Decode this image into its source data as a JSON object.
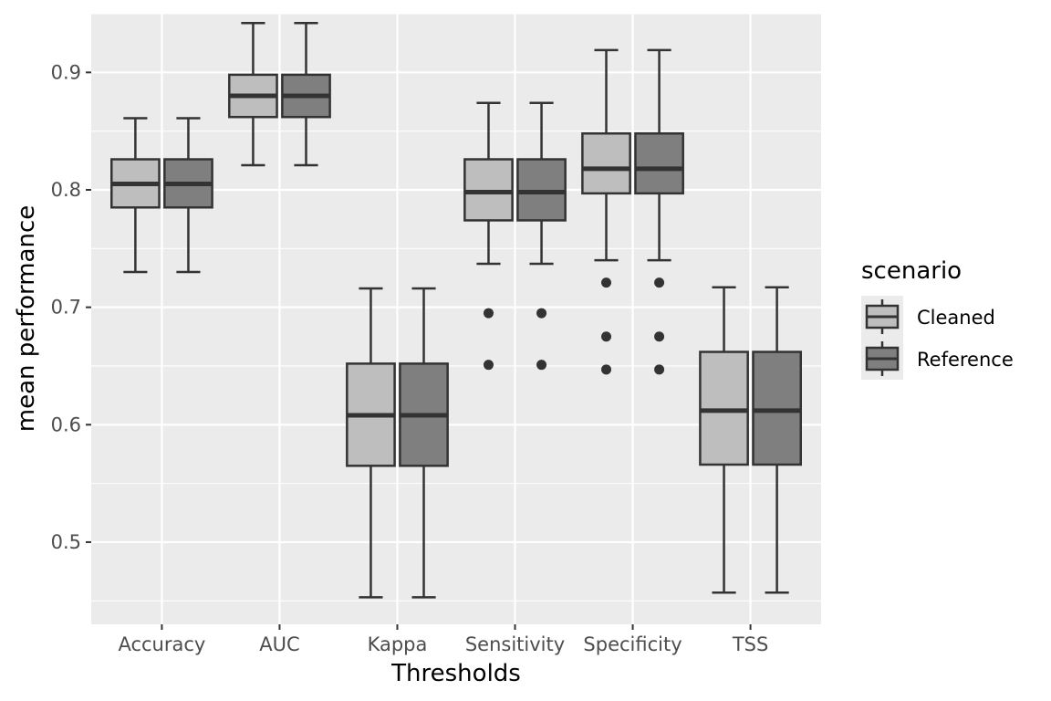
{
  "chart_data": {
    "type": "boxplot",
    "title": "",
    "xlabel": "Thresholds",
    "ylabel": "mean performance",
    "ylim": [
      0.43,
      0.95
    ],
    "yticks": [
      0.5,
      0.6,
      0.7,
      0.8,
      0.9
    ],
    "ytick_labels": [
      "0.5",
      "0.6",
      "0.7",
      "0.8",
      "0.9"
    ],
    "grid": true,
    "legend_position": "right",
    "legend_title": "scenario",
    "categories": [
      "Accuracy",
      "AUC",
      "Kappa",
      "Sensitivity",
      "Specificity",
      "TSS"
    ],
    "series": [
      {
        "name": "Cleaned",
        "color": "#bebebe",
        "boxes": [
          {
            "min": 0.73,
            "q1": 0.785,
            "median": 0.805,
            "q3": 0.826,
            "max": 0.861,
            "outliers": []
          },
          {
            "min": 0.821,
            "q1": 0.862,
            "median": 0.88,
            "q3": 0.898,
            "max": 0.942,
            "outliers": []
          },
          {
            "min": 0.453,
            "q1": 0.565,
            "median": 0.608,
            "q3": 0.652,
            "max": 0.716,
            "outliers": []
          },
          {
            "min": 0.737,
            "q1": 0.774,
            "median": 0.798,
            "q3": 0.826,
            "max": 0.874,
            "outliers": [
              0.695,
              0.651
            ]
          },
          {
            "min": 0.74,
            "q1": 0.797,
            "median": 0.818,
            "q3": 0.848,
            "max": 0.919,
            "outliers": [
              0.721,
              0.675,
              0.647
            ]
          },
          {
            "min": 0.457,
            "q1": 0.566,
            "median": 0.612,
            "q3": 0.662,
            "max": 0.717,
            "outliers": []
          }
        ]
      },
      {
        "name": "Reference",
        "color": "#7f7f7f",
        "boxes": [
          {
            "min": 0.73,
            "q1": 0.785,
            "median": 0.805,
            "q3": 0.826,
            "max": 0.861,
            "outliers": []
          },
          {
            "min": 0.821,
            "q1": 0.862,
            "median": 0.88,
            "q3": 0.898,
            "max": 0.942,
            "outliers": []
          },
          {
            "min": 0.453,
            "q1": 0.565,
            "median": 0.608,
            "q3": 0.652,
            "max": 0.716,
            "outliers": []
          },
          {
            "min": 0.737,
            "q1": 0.774,
            "median": 0.798,
            "q3": 0.826,
            "max": 0.874,
            "outliers": [
              0.695,
              0.651
            ]
          },
          {
            "min": 0.74,
            "q1": 0.797,
            "median": 0.818,
            "q3": 0.848,
            "max": 0.919,
            "outliers": [
              0.721,
              0.675,
              0.647
            ]
          },
          {
            "min": 0.457,
            "q1": 0.566,
            "median": 0.612,
            "q3": 0.662,
            "max": 0.717,
            "outliers": []
          }
        ]
      }
    ],
    "colors": {
      "panel_background": "#ebebeb",
      "grid_major": "#ffffff",
      "box_outline": "#333333",
      "legend_key_background": "#ebebeb"
    }
  }
}
